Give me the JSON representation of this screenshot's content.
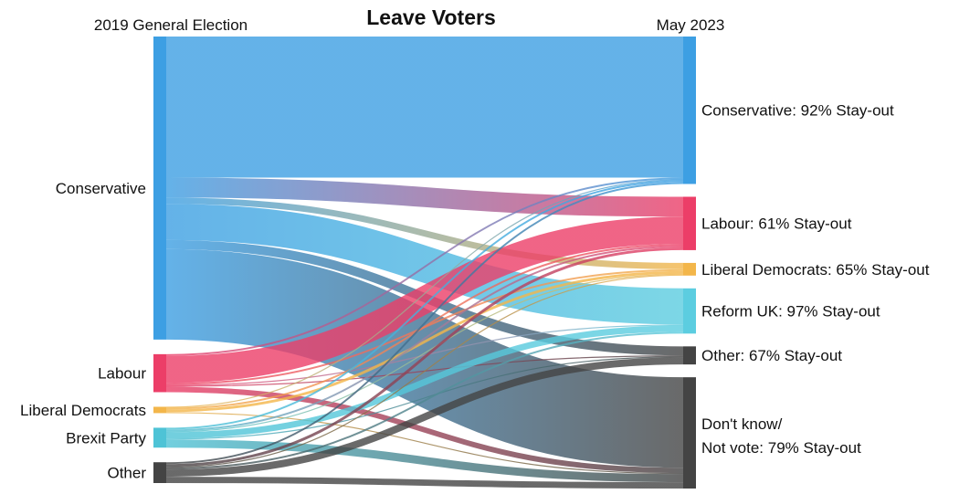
{
  "chart_data": {
    "type": "sankey",
    "title": "Leave Voters",
    "source_axis_label": "2019 General Election",
    "target_axis_label": "May 2023",
    "sources": [
      {
        "id": "con",
        "label": "Conservative",
        "color": "#3d9fe3"
      },
      {
        "id": "lab",
        "label": "Labour",
        "color": "#ec3e68"
      },
      {
        "id": "ld",
        "label": "Liberal Democrats",
        "color": "#f3b64a"
      },
      {
        "id": "bp",
        "label": "Brexit Party",
        "color": "#4ec3d6"
      },
      {
        "id": "oth",
        "label": "Other",
        "color": "#444444"
      }
    ],
    "targets": [
      {
        "id": "con",
        "label": "Conservative: 92% Stay-out",
        "color": "#3d9fe3"
      },
      {
        "id": "lab",
        "label": "Labour:  61% Stay-out",
        "color": "#ec3e68"
      },
      {
        "id": "ld",
        "label": "Liberal Democrats: 65% Stay-out",
        "color": "#f3b64a"
      },
      {
        "id": "ref",
        "label": "Reform UK: 97% Stay-out",
        "color": "#5ccde0"
      },
      {
        "id": "oth",
        "label": "Other: 67% Stay-out",
        "color": "#444444"
      },
      {
        "id": "dk",
        "label": "Don't know/",
        "label2": "Not vote: 79% Stay-out",
        "color": "#444444"
      }
    ],
    "flows": [
      {
        "from": "con",
        "to": "con",
        "value": 156
      },
      {
        "from": "con",
        "to": "lab",
        "value": 22
      },
      {
        "from": "con",
        "to": "ld",
        "value": 7
      },
      {
        "from": "con",
        "to": "ref",
        "value": 40
      },
      {
        "from": "con",
        "to": "oth",
        "value": 10
      },
      {
        "from": "con",
        "to": "dk",
        "value": 100
      },
      {
        "from": "lab",
        "to": "con",
        "value": 2
      },
      {
        "from": "lab",
        "to": "lab",
        "value": 30
      },
      {
        "from": "lab",
        "to": "ld",
        "value": 2
      },
      {
        "from": "lab",
        "to": "ref",
        "value": 1
      },
      {
        "from": "lab",
        "to": "oth",
        "value": 1
      },
      {
        "from": "lab",
        "to": "dk",
        "value": 6
      },
      {
        "from": "ld",
        "to": "con",
        "value": 1
      },
      {
        "from": "ld",
        "to": "lab",
        "value": 2
      },
      {
        "from": "ld",
        "to": "ld",
        "value": 3
      },
      {
        "from": "ld",
        "to": "dk",
        "value": 1
      },
      {
        "from": "bp",
        "to": "con",
        "value": 2
      },
      {
        "from": "bp",
        "to": "lab",
        "value": 2
      },
      {
        "from": "bp",
        "to": "ld",
        "value": 1
      },
      {
        "from": "bp",
        "to": "ref",
        "value": 7
      },
      {
        "from": "bp",
        "to": "oth",
        "value": 1
      },
      {
        "from": "bp",
        "to": "dk",
        "value": 9
      },
      {
        "from": "oth",
        "to": "con",
        "value": 2
      },
      {
        "from": "oth",
        "to": "lab",
        "value": 3
      },
      {
        "from": "oth",
        "to": "ld",
        "value": 1
      },
      {
        "from": "oth",
        "to": "ref",
        "value": 2
      },
      {
        "from": "oth",
        "to": "oth",
        "value": 8
      },
      {
        "from": "oth",
        "to": "dk",
        "value": 7
      }
    ]
  }
}
